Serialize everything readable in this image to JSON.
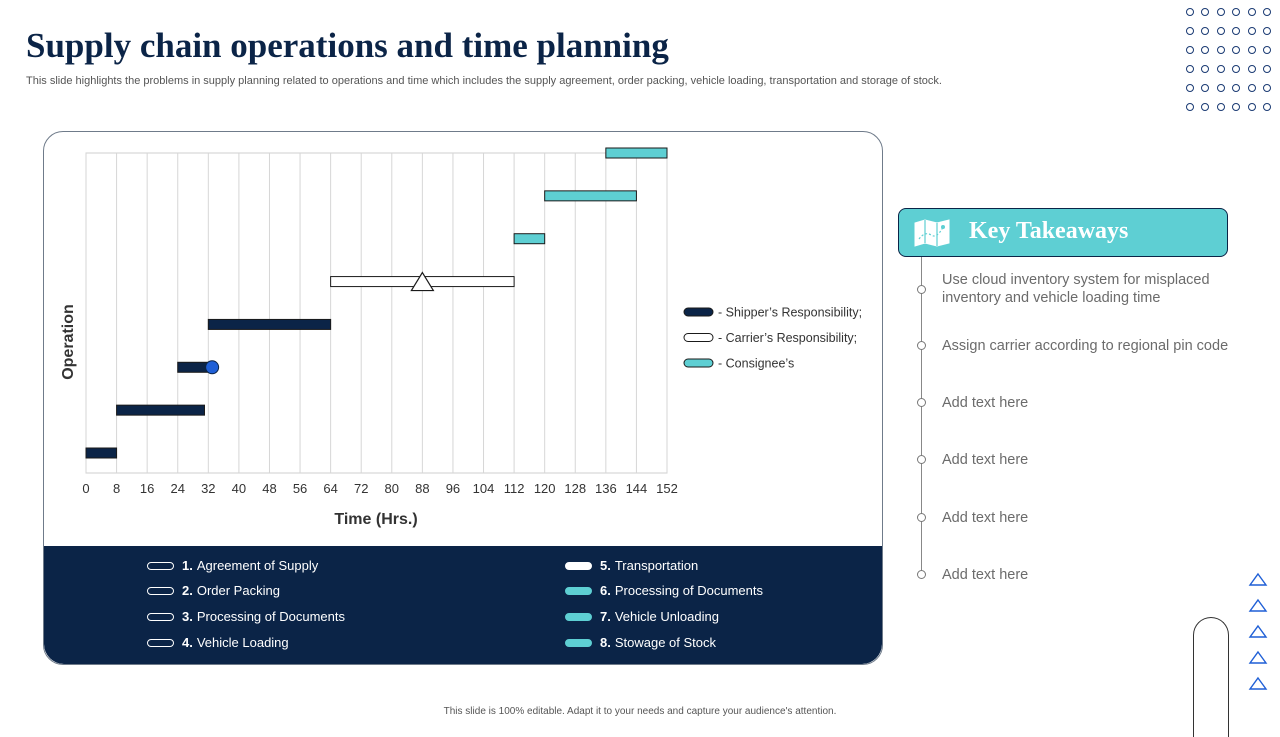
{
  "slide": {
    "title": "Supply chain operations and time planning",
    "subtitle": "This slide highlights the problems in supply planning related to operations and time which includes the supply agreement, order packing, vehicle loading, transportation and storage of stock.",
    "footer": "This slide is 100% editable. Adapt it to your needs and capture your audience's attention."
  },
  "colors": {
    "navy": "#0b2447",
    "teal": "#5ecfd3",
    "blue_marker": "#1f5fd6"
  },
  "chart_data": {
    "type": "gantt",
    "xlabel": "Time (Hrs.)",
    "ylabel": "Operation",
    "xlim": [
      0,
      152
    ],
    "xticks": [
      0,
      8,
      16,
      24,
      32,
      40,
      48,
      56,
      64,
      72,
      80,
      88,
      96,
      104,
      112,
      120,
      128,
      136,
      144,
      152
    ],
    "grid": true,
    "legend_position": "right",
    "legend": [
      {
        "label": "- Shipper’s Responsibility;",
        "style": "navy"
      },
      {
        "label": "- Carrier’s Responsibility;",
        "style": "white"
      },
      {
        "label": "- Consignee’s",
        "style": "teal"
      }
    ],
    "tasks": [
      {
        "start": 0,
        "end": 8,
        "style": "navy"
      },
      {
        "start": 8,
        "end": 31,
        "style": "navy"
      },
      {
        "start": 24,
        "end": 33,
        "style": "navy",
        "milestone": "circle",
        "milestone_at": 33
      },
      {
        "start": 32,
        "end": 64,
        "style": "navy"
      },
      {
        "start": 64,
        "end": 112,
        "style": "white",
        "milestone": "triangle",
        "milestone_at": 88
      },
      {
        "start": 112,
        "end": 120,
        "style": "teal"
      },
      {
        "start": 120,
        "end": 144,
        "style": "teal"
      },
      {
        "start": 136,
        "end": 152,
        "style": "teal"
      }
    ]
  },
  "operations": [
    {
      "num": "1.",
      "label": "Agreement of Supply",
      "style": "outline"
    },
    {
      "num": "2.",
      "label": "Order Packing",
      "style": "outline"
    },
    {
      "num": "3.",
      "label": "Processing of Documents",
      "style": "outline"
    },
    {
      "num": "4.",
      "label": "Vehicle Loading",
      "style": "outline"
    },
    {
      "num": "5.",
      "label": "Transportation",
      "style": "white"
    },
    {
      "num": "6.",
      "label": "Processing of Documents",
      "style": "teal"
    },
    {
      "num": "7.",
      "label": "Vehicle Unloading",
      "style": "teal"
    },
    {
      "num": "8.",
      "label": "Stowage of Stock",
      "style": "teal"
    }
  ],
  "takeaways": {
    "title": "Key Takeaways",
    "icon": "map-icon",
    "items": [
      "Use cloud inventory system for misplaced inventory and vehicle loading time",
      "Assign carrier according to regional pin code",
      "Add text here",
      "Add text here",
      "Add text here",
      "Add text here"
    ]
  }
}
